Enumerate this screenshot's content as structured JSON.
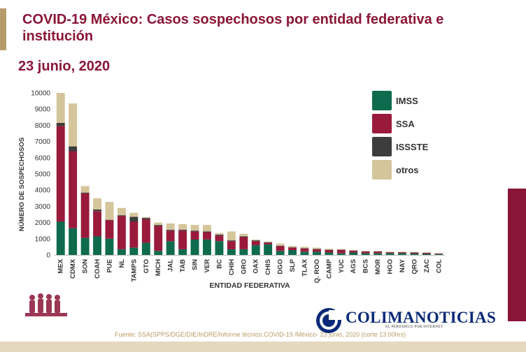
{
  "header": {
    "title": "COVID-19 México: Casos sospechosos por entidad federativa e\ninstitución",
    "subtitle": "23 junio, 2020"
  },
  "footer": {
    "source": "Fuente: SSA(SPPS/DGE/DIE/InDRE/Informe técnico.COVID-19 /México- 23 junio, 2020 (corte 13:00hrs)"
  },
  "watermark": {
    "name": "COLIMANOTICIAS",
    "tagline": "EL PERIODICO POR INTERNET"
  },
  "colors": {
    "IMSS": "#0e6b4d",
    "SSA": "#9a1a3c",
    "ISSSTE": "#3d3d3d",
    "otros": "#d5c59b",
    "title": "#8a1538"
  },
  "chart_data": {
    "type": "bar",
    "stacked": true,
    "xlabel": "ENTIDAD FEDERATIVA",
    "ylabel": "NÚMERO DE SOSPECHOSOS",
    "ylim": [
      0,
      10000
    ],
    "yticks": [
      "0",
      "1000",
      "2000",
      "3000",
      "4000",
      "5000",
      "6000",
      "7000",
      "8000",
      "9000",
      "10000"
    ],
    "grid": false,
    "legend_position": "top-right",
    "categories": [
      "MEX",
      "CDMX",
      "SON",
      "COAH",
      "PUE",
      "NL",
      "TAMPS",
      "GTO",
      "MICH",
      "JAL",
      "TAB",
      "SIN",
      "VER",
      "BC",
      "CHIH",
      "GRO",
      "OAX",
      "CHIS",
      "DGO",
      "SLP",
      "TLAX",
      "Q. ROO",
      "CAMP",
      "YUC",
      "AGS",
      "BCS",
      "MOR",
      "HGO",
      "NAY",
      "QRO",
      "ZAC",
      "COL"
    ],
    "series": [
      {
        "name": "IMSS",
        "values": [
          2050,
          1650,
          1050,
          1150,
          1000,
          350,
          450,
          750,
          250,
          850,
          350,
          950,
          950,
          850,
          350,
          350,
          600,
          650,
          250,
          300,
          200,
          200,
          150,
          100,
          150,
          100,
          100,
          100,
          100,
          80,
          60,
          40
        ]
      },
      {
        "name": "SSA",
        "values": [
          5900,
          4750,
          2750,
          1550,
          1150,
          2050,
          1600,
          1450,
          1550,
          650,
          1150,
          500,
          450,
          350,
          500,
          750,
          250,
          100,
          300,
          150,
          200,
          150,
          150,
          200,
          100,
          100,
          100,
          50,
          50,
          50,
          50,
          40
        ]
      },
      {
        "name": "ISSSTE",
        "values": [
          200,
          300,
          50,
          100,
          20,
          50,
          300,
          80,
          50,
          50,
          50,
          50,
          50,
          50,
          50,
          50,
          50,
          30,
          20,
          20,
          20,
          20,
          20,
          20,
          20,
          20,
          20,
          20,
          20,
          20,
          20,
          10
        ]
      },
      {
        "name": "otros",
        "values": [
          1850,
          2650,
          400,
          700,
          1100,
          450,
          250,
          50,
          150,
          400,
          350,
          350,
          400,
          100,
          550,
          150,
          50,
          50,
          130,
          80,
          80,
          80,
          60,
          40,
          40,
          40,
          30,
          30,
          30,
          30,
          20,
          20
        ]
      }
    ]
  }
}
